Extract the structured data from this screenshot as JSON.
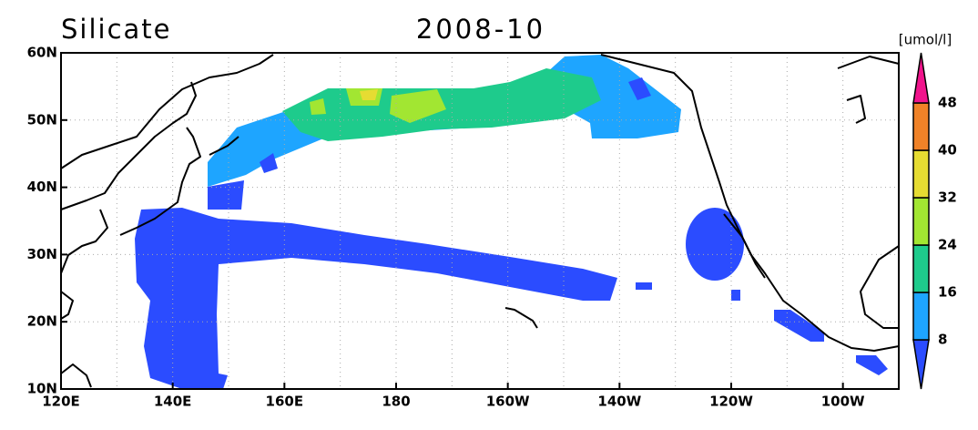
{
  "title": "Silicate",
  "date": "2008-10",
  "colorbar": {
    "unit": "[umol/l]",
    "levels": [
      8,
      16,
      24,
      32,
      40,
      48
    ],
    "colors": [
      "#2b4cff",
      "#1ea5ff",
      "#1ecb8c",
      "#a2e632",
      "#e6dc32",
      "#f08228",
      "#f0148c"
    ]
  },
  "lat_labels": [
    "60N",
    "50N",
    "40N",
    "30N",
    "20N",
    "10N"
  ],
  "lon_labels": [
    "120E",
    "140E",
    "160E",
    "180",
    "160W",
    "140W",
    "120W",
    "100W"
  ]
}
